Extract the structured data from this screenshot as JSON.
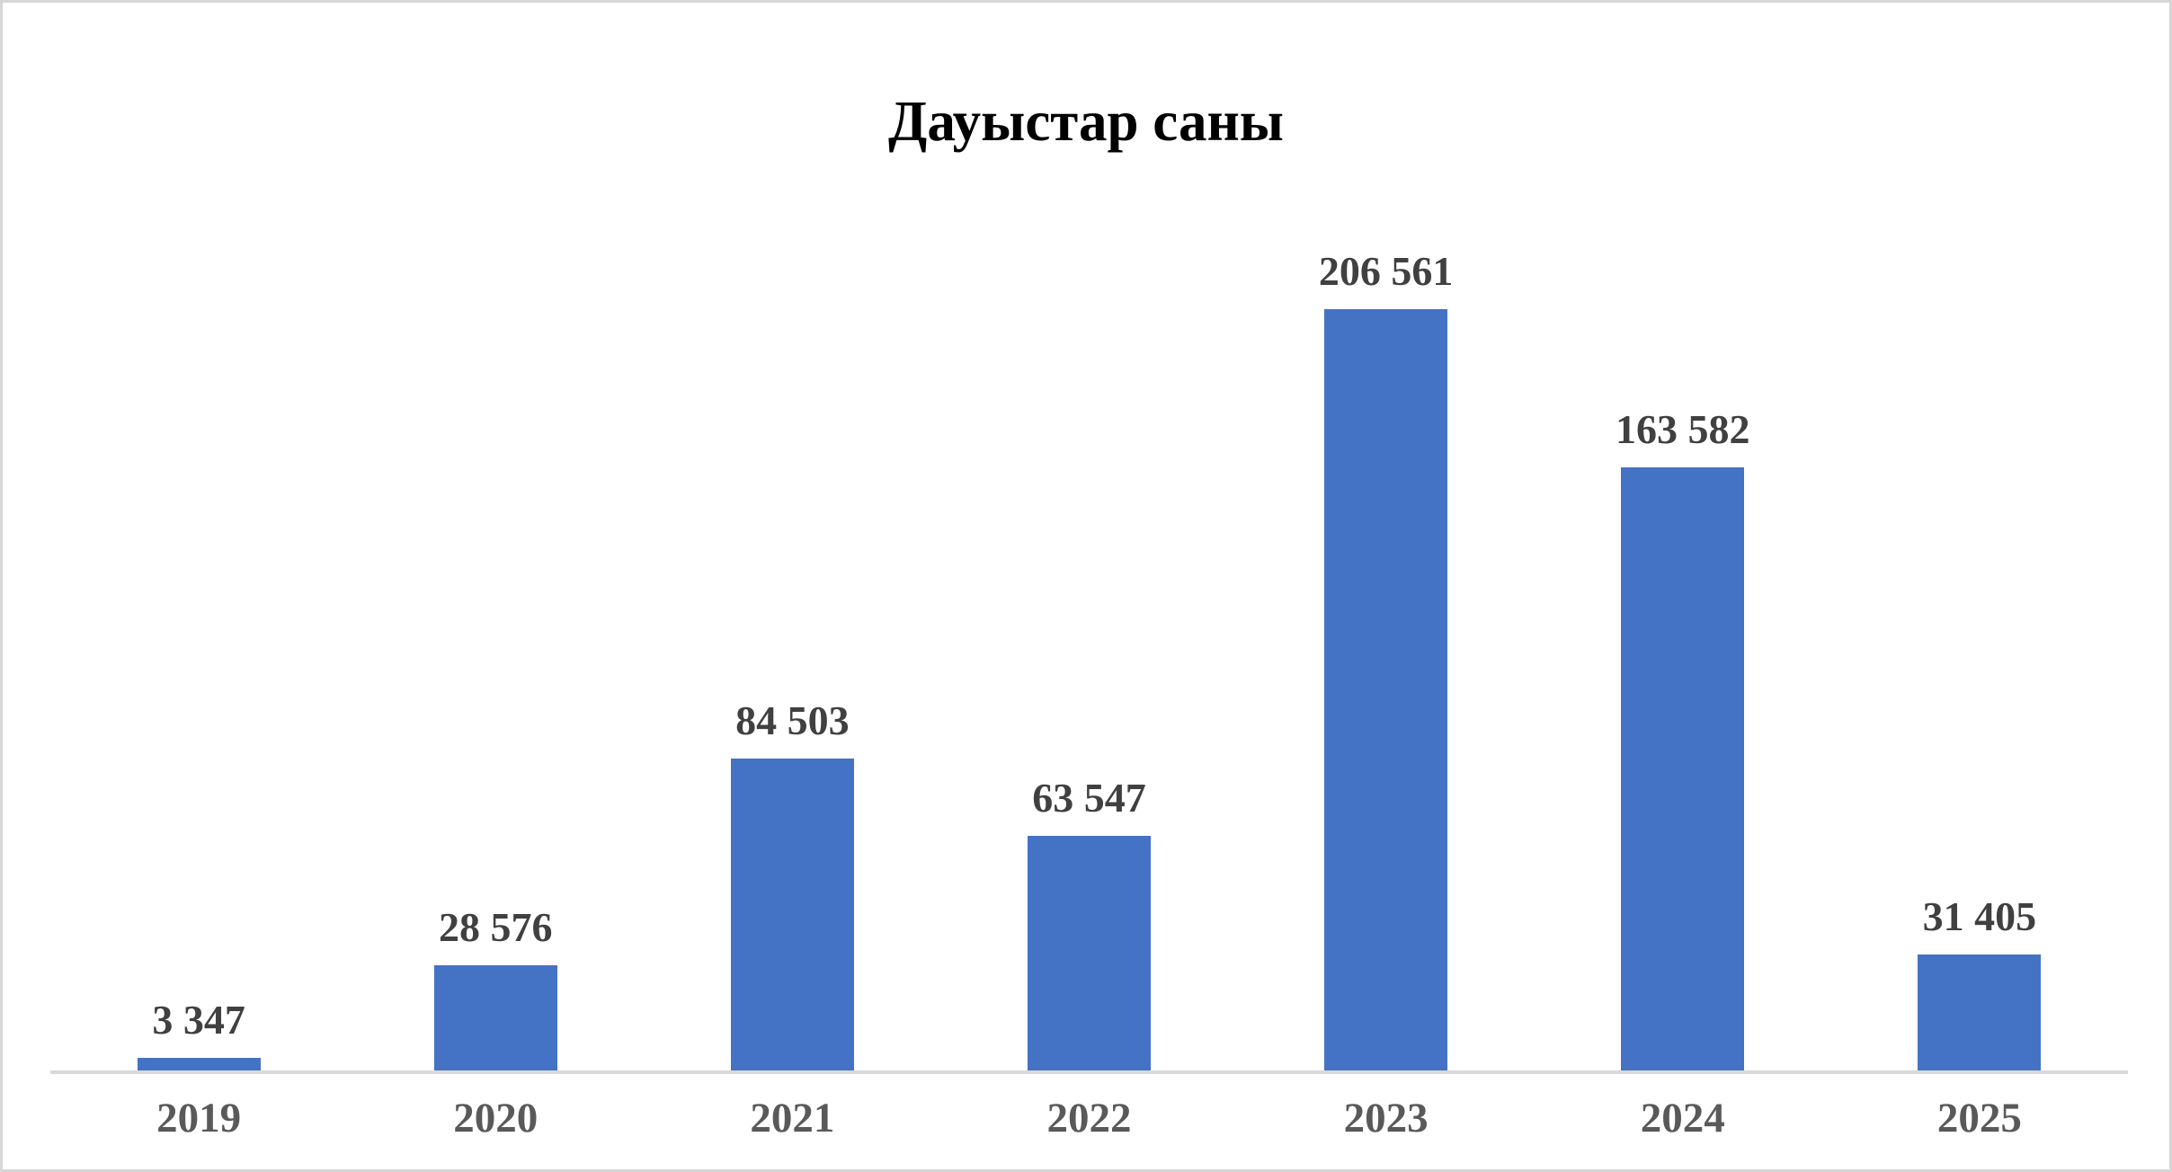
{
  "page": {
    "background": "#ffffff",
    "border_color": "#d6d6d6"
  },
  "chart_data": {
    "type": "bar",
    "title": "Дауыстар саны",
    "categories": [
      "2019",
      "2020",
      "2021",
      "2022",
      "2023",
      "2024",
      "2025"
    ],
    "values": [
      3347,
      28576,
      84503,
      63547,
      206561,
      163582,
      31405
    ],
    "value_labels": [
      "3 347",
      "28 576",
      "84 503",
      "63 547",
      "206 561",
      "163 582",
      "31 405"
    ],
    "xlabel": "",
    "ylabel": "",
    "ylim": [
      0,
      206561
    ],
    "grid": false,
    "legend": false,
    "data_labels_position": "above-bar",
    "bar_color": "#4472C4",
    "value_label_color": "#404040",
    "axis_label_color": "#595959",
    "axis_line_color": "#d9d9d9",
    "title_color": "#000000"
  }
}
